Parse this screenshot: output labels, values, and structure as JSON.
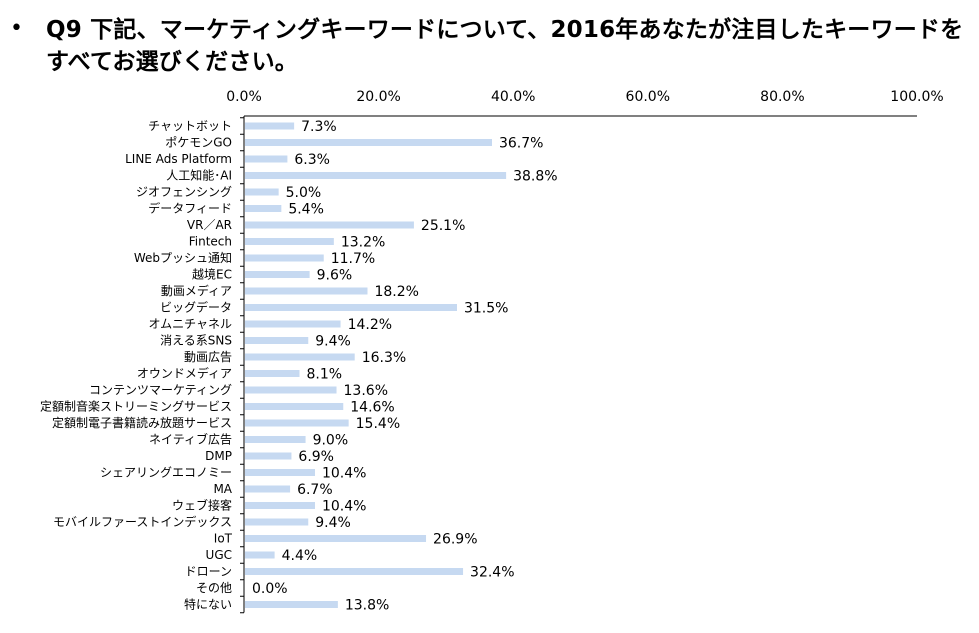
{
  "question": {
    "bullet": "•",
    "text": "Q9 下記、マーケティングキーワードについて、2016年あなたが注目したキーワードをすべてお選びください。"
  },
  "chart_data": {
    "type": "bar",
    "orientation": "horizontal",
    "title": "",
    "xlabel": "",
    "ylabel": "",
    "xlim": [
      0,
      100
    ],
    "x_ticks": [
      "0.0%",
      "20.0%",
      "40.0%",
      "60.0%",
      "80.0%",
      "100.0%"
    ],
    "x_tick_values": [
      0,
      20,
      40,
      60,
      80,
      100
    ],
    "axis_position": "top",
    "grid": false,
    "bar_color": "#c6d9f1",
    "categories": [
      "チャットボット",
      "ポケモンGO",
      "LINE Ads Platform",
      "人工知能･AI",
      "ジオフェンシング",
      "データフィード",
      "VR／AR",
      "Fintech",
      "Webプッシュ通知",
      "越境EC",
      "動画メディア",
      "ビッグデータ",
      "オムニチャネル",
      "消える系SNS",
      "動画広告",
      "オウンドメディア",
      "コンテンツマーケティング",
      "定額制音楽ストリーミングサービス",
      "定額制電子書籍読み放題サービス",
      "ネイティブ広告",
      "DMP",
      "シェアリングエコノミー",
      "MA",
      "ウェブ接客",
      "モバイルファーストインデックス",
      "IoT",
      "UGC",
      "ドローン",
      "その他",
      "特にない"
    ],
    "values": [
      7.3,
      36.7,
      6.3,
      38.8,
      5.0,
      5.4,
      25.1,
      13.2,
      11.7,
      9.6,
      18.2,
      31.5,
      14.2,
      9.4,
      16.3,
      8.1,
      13.6,
      14.6,
      15.4,
      9.0,
      6.9,
      10.4,
      6.7,
      10.4,
      9.4,
      26.9,
      4.4,
      32.4,
      0.0,
      13.8
    ],
    "value_labels": [
      "7.3%",
      "36.7%",
      "6.3%",
      "38.8%",
      "5.0%",
      "5.4%",
      "25.1%",
      "13.2%",
      "11.7%",
      "9.6%",
      "18.2%",
      "31.5%",
      "14.2%",
      "9.4%",
      "16.3%",
      "8.1%",
      "13.6%",
      "14.6%",
      "15.4%",
      "9.0%",
      "6.9%",
      "10.4%",
      "6.7%",
      "10.4%",
      "9.4%",
      "26.9%",
      "4.4%",
      "32.4%",
      "0.0%",
      "13.8%"
    ]
  }
}
